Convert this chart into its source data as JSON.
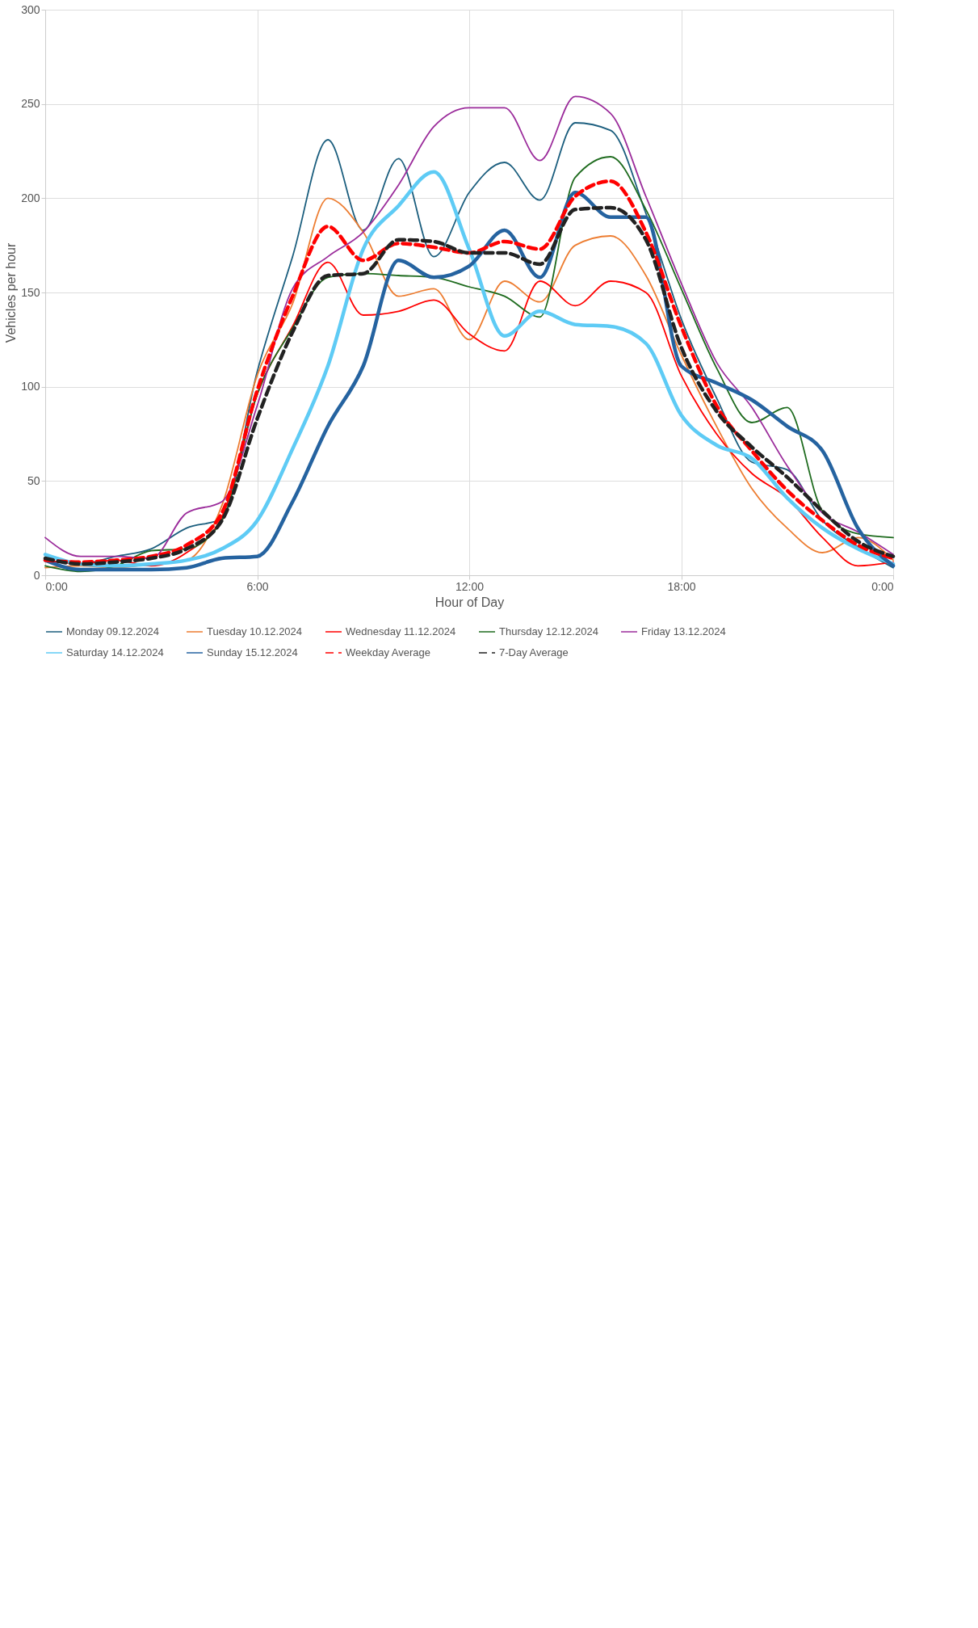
{
  "chart_data": {
    "type": "line",
    "xlabel": "Hour of Day",
    "ylabel": "Vehicles per hour",
    "x": [
      0,
      1,
      2,
      3,
      4,
      5,
      6,
      7,
      8,
      9,
      10,
      11,
      12,
      13,
      14,
      15,
      16,
      17,
      18,
      19,
      20,
      21,
      22,
      23,
      24
    ],
    "xlim": [
      0,
      24
    ],
    "xticks": [
      {
        "value": 0,
        "label": "0:00"
      },
      {
        "value": 6,
        "label": "6:00"
      },
      {
        "value": 12,
        "label": "12:00"
      },
      {
        "value": 18,
        "label": "18:00"
      },
      {
        "value": 24,
        "label": "0:00"
      }
    ],
    "ylim": [
      0,
      300
    ],
    "yticks": [
      0,
      50,
      100,
      150,
      200,
      250,
      300
    ],
    "grid": true,
    "legend": "bottom",
    "marker": "none",
    "series": [
      {
        "name": "Monday 09.12.2024",
        "color": "#1b5e7e",
        "line_style": "solid",
        "values": [
          8,
          6,
          10,
          14,
          25,
          30,
          108,
          169,
          231,
          183,
          221,
          169,
          203,
          219,
          199,
          240,
          236,
          192,
          136,
          94,
          60,
          56,
          29,
          15,
          4
        ]
      },
      {
        "name": "Tuesday 10.12.2024",
        "color": "#ed7d31",
        "line_style": "solid",
        "values": [
          4,
          5,
          4,
          6,
          8,
          37,
          106,
          144,
          200,
          182,
          148,
          152,
          125,
          156,
          145,
          175,
          180,
          159,
          117,
          79,
          46,
          25,
          12,
          20,
          8
        ]
      },
      {
        "name": "Wednesday 11.12.2024",
        "color": "#ff0000",
        "line_style": "solid",
        "values": [
          8,
          6,
          8,
          5,
          12,
          31,
          96,
          132,
          166,
          138,
          140,
          146,
          128,
          119,
          156,
          143,
          156,
          150,
          106,
          75,
          54,
          41,
          20,
          5,
          7
        ]
      },
      {
        "name": "Thursday 12.12.2024",
        "color": "#1e6b1e",
        "line_style": "solid",
        "values": [
          5,
          2,
          5,
          13,
          14,
          29,
          96,
          131,
          158,
          160,
          159,
          158,
          153,
          148,
          137,
          211,
          222,
          194,
          152,
          110,
          81,
          89,
          34,
          22,
          20
        ]
      },
      {
        "name": "Friday 13.12.2024",
        "color": "#9b2c9b",
        "line_style": "solid",
        "values": [
          20,
          10,
          10,
          9,
          33,
          39,
          90,
          152,
          169,
          182,
          207,
          238,
          248,
          248,
          220,
          254,
          245,
          201,
          155,
          113,
          89,
          58,
          33,
          23,
          11
        ]
      },
      {
        "name": "Saturday 14.12.2024",
        "color": "#5ecbf5",
        "line_style": "solid",
        "values": [
          11,
          6,
          5,
          6,
          8,
          14,
          29,
          67,
          111,
          173,
          196,
          214,
          173,
          127,
          140,
          133,
          132,
          123,
          85,
          69,
          62,
          41,
          25,
          14,
          6
        ]
      },
      {
        "name": "Sunday 15.12.2024",
        "color": "#2563a0",
        "line_style": "solid",
        "values": [
          8,
          3,
          3,
          3,
          4,
          9,
          10,
          39,
          79,
          111,
          167,
          158,
          164,
          183,
          158,
          203,
          190,
          190,
          111,
          102,
          93,
          79,
          66,
          25,
          5
        ]
      },
      {
        "name": "Weekday Average",
        "color": "#ff0000",
        "line_style": "dashed",
        "values": [
          8,
          7,
          8,
          10,
          16,
          33,
          98,
          148,
          185,
          167,
          176,
          174,
          171,
          177,
          173,
          201,
          209,
          182,
          132,
          90,
          66,
          45,
          29,
          16,
          9
        ]
      },
      {
        "name": "7-Day Average",
        "color": "#222222",
        "line_style": "dashed",
        "values": [
          9,
          6,
          7,
          9,
          14,
          29,
          83,
          129,
          159,
          160,
          178,
          177,
          171,
          171,
          165,
          194,
          195,
          178,
          121,
          87,
          68,
          52,
          34,
          18,
          10
        ]
      }
    ]
  }
}
